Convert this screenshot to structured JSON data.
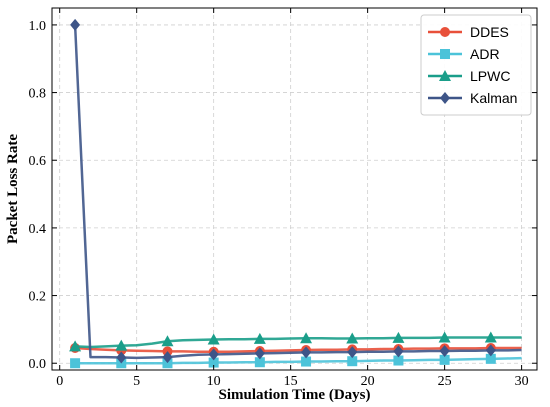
{
  "chart_data": {
    "type": "line",
    "xlabel": "Simulation Time (Days)",
    "ylabel": "Packet Loss Rate",
    "xlim": [
      -0.5,
      31
    ],
    "ylim": [
      -0.02,
      1.05
    ],
    "xticks": [
      0,
      5,
      10,
      15,
      20,
      25,
      30
    ],
    "yticks": [
      0.0,
      0.2,
      0.4,
      0.6,
      0.8,
      1.0
    ],
    "xtick_labels": [
      "0",
      "5",
      "10",
      "15",
      "20",
      "25",
      "30"
    ],
    "ytick_labels": [
      "0.0",
      "0.2",
      "0.4",
      "0.6",
      "0.8",
      "1.0"
    ],
    "grid": true,
    "legend_position": "top-right",
    "x": [
      1,
      2,
      3,
      4,
      5,
      6,
      7,
      8,
      9,
      10,
      11,
      12,
      13,
      14,
      15,
      16,
      17,
      18,
      19,
      20,
      21,
      22,
      23,
      24,
      25,
      26,
      27,
      28,
      29,
      30
    ],
    "marker_every": 3,
    "series": [
      {
        "name": "DDES",
        "color": "#e8503a",
        "marker": "circle",
        "values": [
          0.045,
          0.042,
          0.04,
          0.038,
          0.037,
          0.036,
          0.035,
          0.035,
          0.034,
          0.034,
          0.034,
          0.035,
          0.036,
          0.037,
          0.038,
          0.039,
          0.04,
          0.04,
          0.041,
          0.041,
          0.042,
          0.042,
          0.043,
          0.043,
          0.044,
          0.044,
          0.044,
          0.045,
          0.045,
          0.045
        ]
      },
      {
        "name": "ADR",
        "color": "#4cc3d9",
        "marker": "square",
        "values": [
          0.0,
          0.0,
          0.0,
          0.0,
          0.0,
          0.0,
          0.0,
          0.001,
          0.001,
          0.002,
          0.002,
          0.003,
          0.003,
          0.004,
          0.004,
          0.005,
          0.005,
          0.006,
          0.006,
          0.007,
          0.008,
          0.008,
          0.009,
          0.01,
          0.01,
          0.011,
          0.012,
          0.013,
          0.014,
          0.015
        ]
      },
      {
        "name": "LPWC",
        "color": "#1a9e8a",
        "marker": "triangle",
        "values": [
          0.05,
          0.048,
          0.05,
          0.052,
          0.053,
          0.058,
          0.065,
          0.068,
          0.069,
          0.07,
          0.071,
          0.071,
          0.072,
          0.072,
          0.073,
          0.074,
          0.074,
          0.073,
          0.073,
          0.074,
          0.074,
          0.075,
          0.075,
          0.075,
          0.076,
          0.076,
          0.076,
          0.076,
          0.076,
          0.076
        ]
      },
      {
        "name": "Kalman",
        "color": "#3e5588",
        "marker": "diamond",
        "values": [
          1.0,
          0.018,
          0.018,
          0.017,
          0.016,
          0.017,
          0.018,
          0.022,
          0.025,
          0.026,
          0.027,
          0.028,
          0.029,
          0.03,
          0.031,
          0.032,
          0.032,
          0.033,
          0.033,
          0.034,
          0.034,
          0.035,
          0.035,
          0.036,
          0.036,
          0.037,
          0.037,
          0.038,
          0.038,
          0.039
        ]
      }
    ]
  }
}
